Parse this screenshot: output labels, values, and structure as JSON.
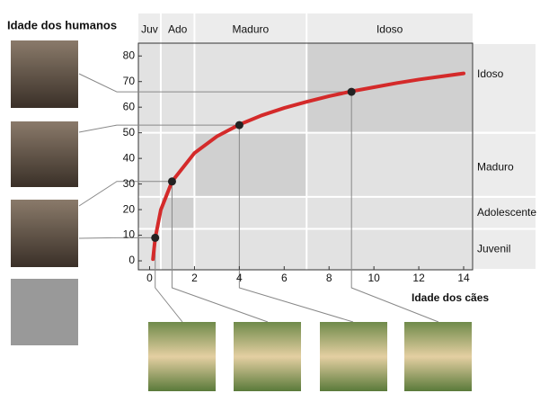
{
  "chart_data": {
    "type": "line",
    "title": "Idade dos humanos",
    "x_label": "Idade dos cães",
    "xlim": [
      -0.5,
      14.4
    ],
    "ylim": [
      -3.5,
      85
    ],
    "xticks": [
      0,
      2,
      4,
      6,
      8,
      10,
      12,
      14
    ],
    "yticks": [
      0,
      10,
      20,
      30,
      40,
      50,
      60,
      70,
      80
    ],
    "dog_stages": [
      {
        "label": "Juv",
        "range": [
          -0.5,
          0.5
        ]
      },
      {
        "label": "Ado",
        "range": [
          0.5,
          2
        ]
      },
      {
        "label": "Maduro",
        "range": [
          2,
          7
        ]
      },
      {
        "label": "Idoso",
        "range": [
          7,
          14.4
        ]
      }
    ],
    "human_stages": [
      {
        "label": "Juvenil",
        "range": [
          -3.5,
          12.5
        ]
      },
      {
        "label": "Adolescente",
        "range": [
          12.5,
          25
        ]
      },
      {
        "label": "Maduro",
        "range": [
          25,
          50
        ]
      },
      {
        "label": "Idoso",
        "range": [
          50,
          85
        ]
      }
    ],
    "series": [
      {
        "color": "#d42a2a",
        "x": [
          0.15,
          0.25,
          0.5,
          1,
          2,
          3,
          4,
          5,
          6,
          7,
          8,
          9,
          10,
          11,
          12,
          13,
          14
        ],
        "values": [
          0.65,
          8.8,
          19.9,
          31,
          42.1,
          48.6,
          53.2,
          56.8,
          59.7,
          62.1,
          64.3,
          66.2,
          67.8,
          69.4,
          70.8,
          72.0,
          73.2
        ]
      },
      {
        "color": "#222222",
        "x": [
          9,
          4,
          1,
          0.25
        ],
        "values": [
          66,
          53,
          31,
          9
        ]
      }
    ]
  }
}
